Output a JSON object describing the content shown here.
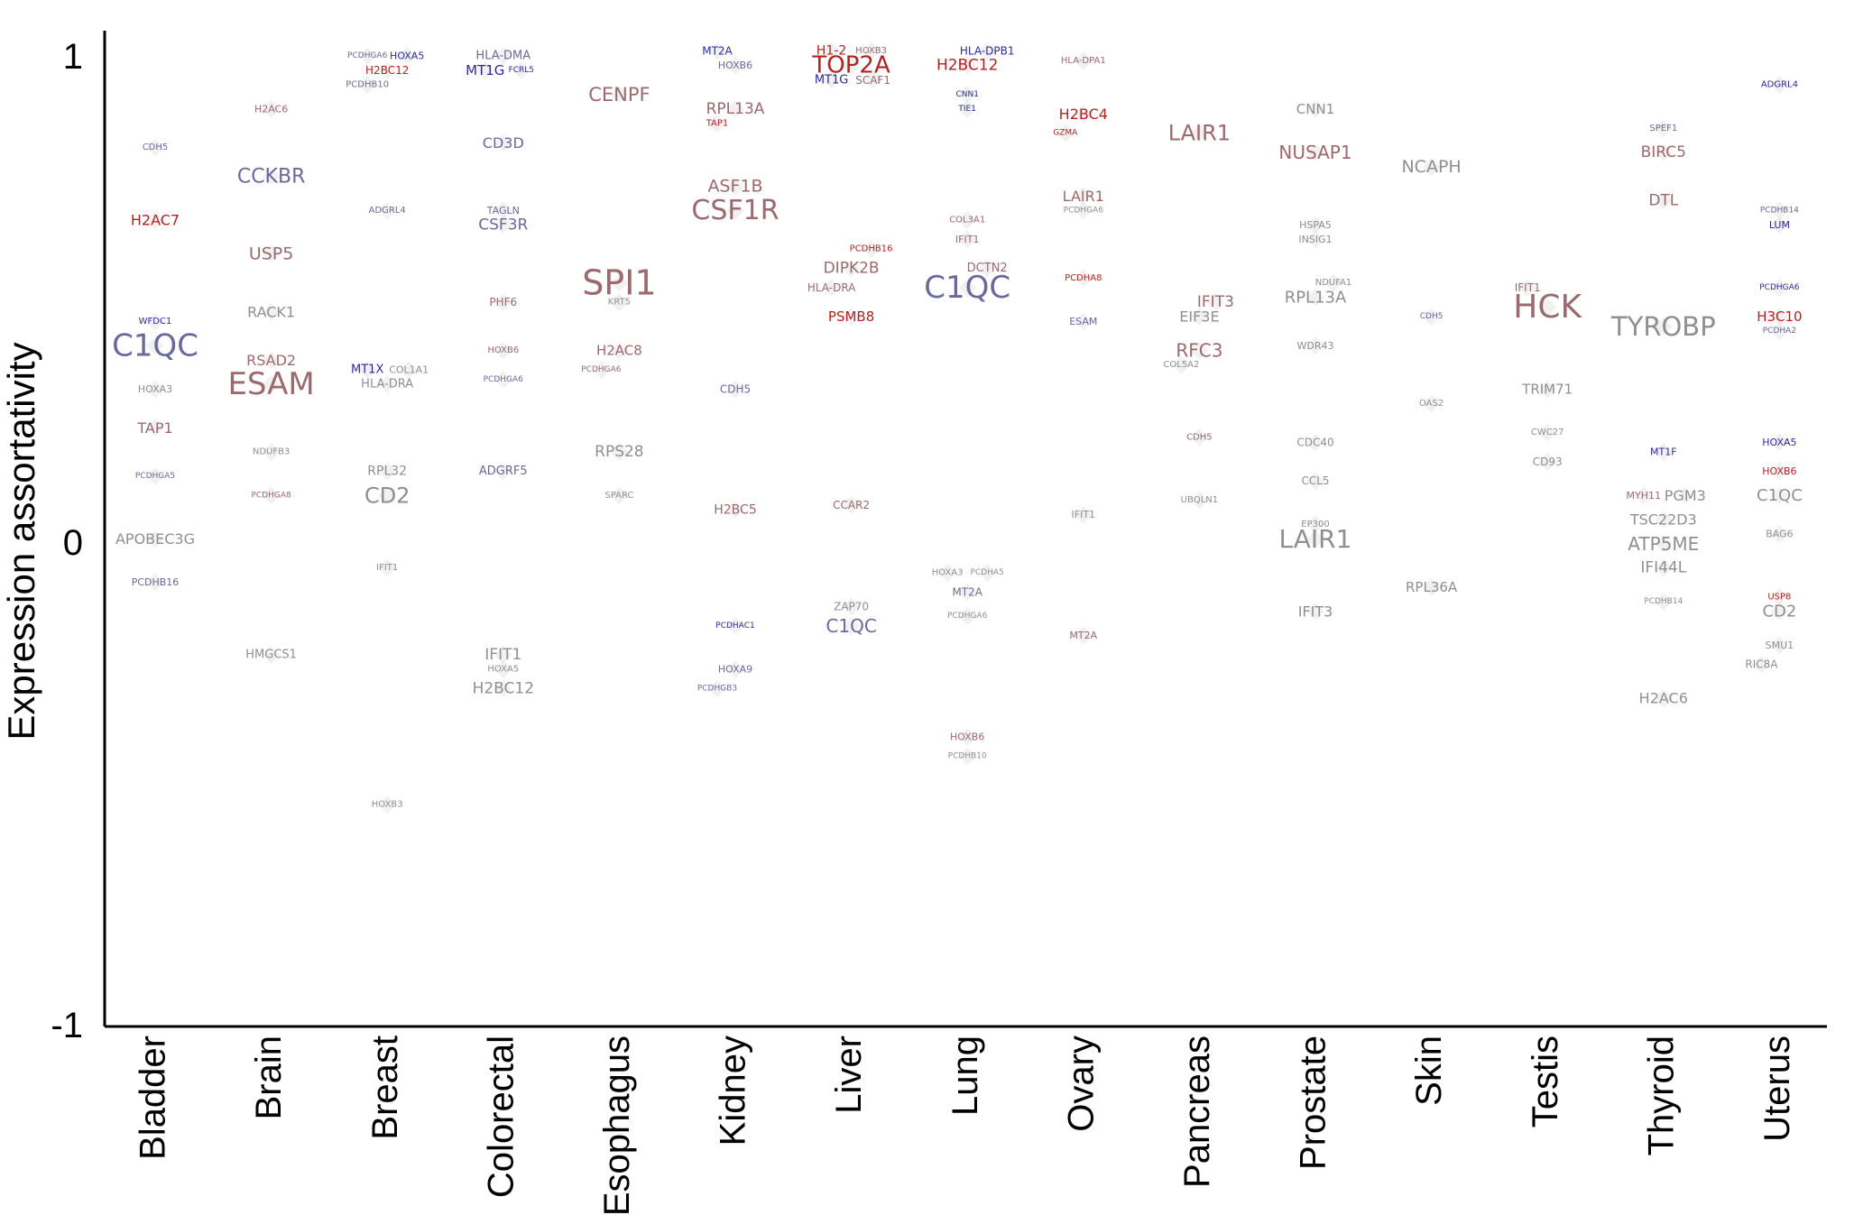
{
  "chart_data": {
    "type": "scatter",
    "ylabel": "Expression assortativity",
    "ylim": [
      -1,
      1
    ],
    "yticks": [
      "1",
      "0",
      "-1"
    ],
    "categories": [
      "Bladder",
      "Brain",
      "Breast",
      "Colorectal",
      "Esophagus",
      "Kidney",
      "Liver",
      "Lung",
      "Ovary",
      "Pancreas",
      "Prostate",
      "Skin",
      "Testis",
      "Thyroid",
      "Uterus"
    ],
    "colors": {
      "red": "#b22222",
      "blue": "#2b2b9a",
      "mauve": "#9a6a6e",
      "slate": "#6a6a9a",
      "gray": "#8f8f8f"
    },
    "labels": [
      {
        "t": "CDH5",
        "c": 0,
        "y": 0.81,
        "s": 10,
        "k": "slate"
      },
      {
        "t": "H2AC7",
        "c": 0,
        "y": 0.66,
        "s": 16,
        "k": "red"
      },
      {
        "t": "WFDC1",
        "c": 0,
        "y": 0.45,
        "s": 10,
        "k": "blue"
      },
      {
        "t": "C1QC",
        "c": 0,
        "y": 0.4,
        "s": 34,
        "k": "slate"
      },
      {
        "t": "HOXA3",
        "c": 0,
        "y": 0.31,
        "s": 11,
        "k": "gray"
      },
      {
        "t": "TAP1",
        "c": 0,
        "y": 0.23,
        "s": 16,
        "k": "mauve"
      },
      {
        "t": "PCDHGA5",
        "c": 0,
        "y": 0.13,
        "s": 9,
        "k": "slate"
      },
      {
        "t": "APOBEC3G",
        "c": 0,
        "y": 0.0,
        "s": 16,
        "k": "gray"
      },
      {
        "t": "PCDHB16",
        "c": 0,
        "y": -0.09,
        "s": 11,
        "k": "slate"
      },
      {
        "t": "H2AC6",
        "c": 1,
        "y": 0.89,
        "s": 11,
        "k": "mauve"
      },
      {
        "t": "CCKBR",
        "c": 1,
        "y": 0.75,
        "s": 22,
        "k": "slate"
      },
      {
        "t": "USP5",
        "c": 1,
        "y": 0.59,
        "s": 19,
        "k": "mauve"
      },
      {
        "t": "RACK1",
        "c": 1,
        "y": 0.47,
        "s": 16,
        "k": "gray"
      },
      {
        "t": "RSAD2",
        "c": 1,
        "y": 0.37,
        "s": 16,
        "k": "mauve"
      },
      {
        "t": "ESAM",
        "c": 1,
        "y": 0.32,
        "s": 34,
        "k": "mauve"
      },
      {
        "t": "NDUFB3",
        "c": 1,
        "y": 0.18,
        "s": 10,
        "k": "gray"
      },
      {
        "t": "PCDHGA8",
        "c": 1,
        "y": 0.09,
        "s": 9,
        "k": "mauve"
      },
      {
        "t": "HMGCS1",
        "c": 1,
        "y": -0.24,
        "s": 13,
        "k": "gray"
      },
      {
        "t": "PCDHGA6",
        "c": 2,
        "y": 1.0,
        "s": 9,
        "k": "slate",
        "dx": -22
      },
      {
        "t": "HOXA5",
        "c": 2,
        "y": 1.0,
        "s": 11,
        "k": "blue",
        "dx": 22
      },
      {
        "t": "H2BC12",
        "c": 2,
        "y": 0.97,
        "s": 12,
        "k": "red"
      },
      {
        "t": "PCDHB10",
        "c": 2,
        "y": 0.94,
        "s": 10,
        "k": "slate",
        "dx": -22
      },
      {
        "t": "ADGRL4",
        "c": 2,
        "y": 0.68,
        "s": 10,
        "k": "slate"
      },
      {
        "t": "MT1X",
        "c": 2,
        "y": 0.35,
        "s": 13,
        "k": "blue",
        "dx": -22
      },
      {
        "t": "COL1A1",
        "c": 2,
        "y": 0.35,
        "s": 11,
        "k": "gray",
        "dx": 24
      },
      {
        "t": "HLA-DRA",
        "c": 2,
        "y": 0.32,
        "s": 13,
        "k": "gray"
      },
      {
        "t": "RPL32",
        "c": 2,
        "y": 0.14,
        "s": 14,
        "k": "gray"
      },
      {
        "t": "CD2",
        "c": 2,
        "y": 0.09,
        "s": 24,
        "k": "gray"
      },
      {
        "t": "IFIT1",
        "c": 2,
        "y": -0.06,
        "s": 10,
        "k": "gray"
      },
      {
        "t": "HOXB3",
        "c": 2,
        "y": -0.55,
        "s": 10,
        "k": "gray"
      },
      {
        "t": "HLA-DMA",
        "c": 3,
        "y": 1.0,
        "s": 13,
        "k": "slate"
      },
      {
        "t": "MT1G",
        "c": 3,
        "y": 0.97,
        "s": 15,
        "k": "blue",
        "dx": -20
      },
      {
        "t": "FCRL5",
        "c": 3,
        "y": 0.97,
        "s": 9,
        "k": "blue",
        "dx": 20
      },
      {
        "t": "CD3D",
        "c": 3,
        "y": 0.82,
        "s": 16,
        "k": "slate"
      },
      {
        "t": "TAGLN",
        "c": 3,
        "y": 0.68,
        "s": 11,
        "k": "slate"
      },
      {
        "t": "CSF3R",
        "c": 3,
        "y": 0.65,
        "s": 17,
        "k": "slate"
      },
      {
        "t": "PHF6",
        "c": 3,
        "y": 0.49,
        "s": 12,
        "k": "mauve"
      },
      {
        "t": "HOXB6",
        "c": 3,
        "y": 0.39,
        "s": 10,
        "k": "mauve"
      },
      {
        "t": "PCDHGA6",
        "c": 3,
        "y": 0.33,
        "s": 9,
        "k": "slate"
      },
      {
        "t": "ADGRF5",
        "c": 3,
        "y": 0.14,
        "s": 13,
        "k": "slate"
      },
      {
        "t": "IFIT1",
        "c": 3,
        "y": -0.24,
        "s": 17,
        "k": "gray"
      },
      {
        "t": "HOXA5",
        "c": 3,
        "y": -0.27,
        "s": 10,
        "k": "gray"
      },
      {
        "t": "H2BC12",
        "c": 3,
        "y": -0.31,
        "s": 17,
        "k": "gray"
      },
      {
        "t": "CENPF",
        "c": 4,
        "y": 0.92,
        "s": 21,
        "k": "mauve"
      },
      {
        "t": "SPI1",
        "c": 4,
        "y": 0.53,
        "s": 38,
        "k": "mauve"
      },
      {
        "t": "KRT5",
        "c": 4,
        "y": 0.49,
        "s": 10,
        "k": "gray"
      },
      {
        "t": "H2AC8",
        "c": 4,
        "y": 0.39,
        "s": 15,
        "k": "mauve"
      },
      {
        "t": "PCDHGA6",
        "c": 4,
        "y": 0.35,
        "s": 9,
        "k": "mauve",
        "dx": -20
      },
      {
        "t": "RPS28",
        "c": 4,
        "y": 0.18,
        "s": 17,
        "k": "gray"
      },
      {
        "t": "SPARC",
        "c": 4,
        "y": 0.09,
        "s": 10,
        "k": "gray"
      },
      {
        "t": "MT2A",
        "c": 5,
        "y": 1.01,
        "s": 12,
        "k": "blue",
        "dx": -20
      },
      {
        "t": "HOXB6",
        "c": 5,
        "y": 0.98,
        "s": 11,
        "k": "slate"
      },
      {
        "t": "RPL13A",
        "c": 5,
        "y": 0.89,
        "s": 17,
        "k": "mauve"
      },
      {
        "t": "TAP1",
        "c": 5,
        "y": 0.86,
        "s": 10,
        "k": "red",
        "dx": -20
      },
      {
        "t": "ASF1B",
        "c": 5,
        "y": 0.73,
        "s": 19,
        "k": "mauve"
      },
      {
        "t": "CSF1R",
        "c": 5,
        "y": 0.68,
        "s": 30,
        "k": "mauve"
      },
      {
        "t": "CDH5",
        "c": 5,
        "y": 0.31,
        "s": 12,
        "k": "slate"
      },
      {
        "t": "H2BC5",
        "c": 5,
        "y": 0.06,
        "s": 14,
        "k": "mauve"
      },
      {
        "t": "PCDHAC1",
        "c": 5,
        "y": -0.18,
        "s": 9,
        "k": "blue"
      },
      {
        "t": "HOXA9",
        "c": 5,
        "y": -0.27,
        "s": 11,
        "k": "slate"
      },
      {
        "t": "PCDHGB3",
        "c": 5,
        "y": -0.31,
        "s": 9,
        "k": "slate",
        "dx": -20
      },
      {
        "t": "H1-2",
        "c": 6,
        "y": 1.01,
        "s": 14,
        "k": "red",
        "dx": -22
      },
      {
        "t": "HOXB3",
        "c": 6,
        "y": 1.01,
        "s": 10,
        "k": "mauve",
        "dx": 22
      },
      {
        "t": "TOP2A",
        "c": 6,
        "y": 0.98,
        "s": 26,
        "k": "red"
      },
      {
        "t": "MT1G",
        "c": 6,
        "y": 0.95,
        "s": 13,
        "k": "blue",
        "dx": -22
      },
      {
        "t": "SCAF1",
        "c": 6,
        "y": 0.95,
        "s": 12,
        "k": "mauve",
        "dx": 24
      },
      {
        "t": "PCDHB16",
        "c": 6,
        "y": 0.6,
        "s": 10,
        "k": "red",
        "dx": 22
      },
      {
        "t": "DIPK2B",
        "c": 6,
        "y": 0.56,
        "s": 17,
        "k": "mauve"
      },
      {
        "t": "HLA-DRA",
        "c": 6,
        "y": 0.52,
        "s": 12,
        "k": "mauve",
        "dx": -22
      },
      {
        "t": "PSMB8",
        "c": 6,
        "y": 0.46,
        "s": 15,
        "k": "red"
      },
      {
        "t": "CCAR2",
        "c": 6,
        "y": 0.07,
        "s": 12,
        "k": "mauve"
      },
      {
        "t": "ZAP70",
        "c": 6,
        "y": -0.14,
        "s": 12,
        "k": "gray"
      },
      {
        "t": "C1QC",
        "c": 6,
        "y": -0.18,
        "s": 20,
        "k": "slate"
      },
      {
        "t": "HLA-DPB1",
        "c": 7,
        "y": 1.01,
        "s": 12,
        "k": "blue",
        "dx": 22
      },
      {
        "t": "H2BC12",
        "c": 7,
        "y": 0.98,
        "s": 17,
        "k": "red"
      },
      {
        "t": "CNN1",
        "c": 7,
        "y": 0.92,
        "s": 9,
        "k": "blue"
      },
      {
        "t": "TIE1",
        "c": 7,
        "y": 0.89,
        "s": 9,
        "k": "blue"
      },
      {
        "t": "COL3A1",
        "c": 7,
        "y": 0.66,
        "s": 10,
        "k": "mauve"
      },
      {
        "t": "IFIT1",
        "c": 7,
        "y": 0.62,
        "s": 11,
        "k": "mauve"
      },
      {
        "t": "DCTN2",
        "c": 7,
        "y": 0.56,
        "s": 13,
        "k": "mauve",
        "dx": 22
      },
      {
        "t": "C1QC",
        "c": 7,
        "y": 0.52,
        "s": 34,
        "k": "slate"
      },
      {
        "t": "HOXA3",
        "c": 7,
        "y": -0.07,
        "s": 10,
        "k": "gray",
        "dx": -22
      },
      {
        "t": "PCDHA5",
        "c": 7,
        "y": -0.07,
        "s": 9,
        "k": "gray",
        "dx": 22
      },
      {
        "t": "MT2A",
        "c": 7,
        "y": -0.11,
        "s": 12,
        "k": "slate"
      },
      {
        "t": "PCDHGA6",
        "c": 7,
        "y": -0.16,
        "s": 9,
        "k": "gray"
      },
      {
        "t": "HOXB6",
        "c": 7,
        "y": -0.41,
        "s": 11,
        "k": "mauve"
      },
      {
        "t": "PCDHB10",
        "c": 7,
        "y": -0.45,
        "s": 9,
        "k": "gray"
      },
      {
        "t": "HLA-DPA1",
        "c": 8,
        "y": 0.99,
        "s": 10,
        "k": "mauve"
      },
      {
        "t": "H2BC4",
        "c": 8,
        "y": 0.88,
        "s": 16,
        "k": "red"
      },
      {
        "t": "GZMA",
        "c": 8,
        "y": 0.84,
        "s": 9,
        "k": "red",
        "dx": -20
      },
      {
        "t": "LAIR1",
        "c": 8,
        "y": 0.71,
        "s": 16,
        "k": "mauve"
      },
      {
        "t": "PCDHGA6",
        "c": 8,
        "y": 0.68,
        "s": 9,
        "k": "gray"
      },
      {
        "t": "PCDHA8",
        "c": 8,
        "y": 0.54,
        "s": 10,
        "k": "red"
      },
      {
        "t": "ESAM",
        "c": 8,
        "y": 0.45,
        "s": 11,
        "k": "slate"
      },
      {
        "t": "IFIT1",
        "c": 8,
        "y": 0.05,
        "s": 11,
        "k": "gray"
      },
      {
        "t": "MT2A",
        "c": 8,
        "y": -0.2,
        "s": 11,
        "k": "mauve"
      },
      {
        "t": "LAIR1",
        "c": 9,
        "y": 0.84,
        "s": 24,
        "k": "mauve"
      },
      {
        "t": "IFIT3",
        "c": 9,
        "y": 0.49,
        "s": 17,
        "k": "mauve",
        "dx": 18
      },
      {
        "t": "EIF3E",
        "c": 9,
        "y": 0.46,
        "s": 16,
        "k": "gray"
      },
      {
        "t": "RFC3",
        "c": 9,
        "y": 0.39,
        "s": 20,
        "k": "mauve"
      },
      {
        "t": "COL5A2",
        "c": 9,
        "y": 0.36,
        "s": 10,
        "k": "gray",
        "dx": -20
      },
      {
        "t": "CDH5",
        "c": 9,
        "y": 0.21,
        "s": 10,
        "k": "mauve"
      },
      {
        "t": "UBQLN1",
        "c": 9,
        "y": 0.08,
        "s": 10,
        "k": "gray"
      },
      {
        "t": "CNN1",
        "c": 10,
        "y": 0.89,
        "s": 15,
        "k": "gray"
      },
      {
        "t": "NUSAP1",
        "c": 10,
        "y": 0.8,
        "s": 20,
        "k": "mauve"
      },
      {
        "t": "HSPA5",
        "c": 10,
        "y": 0.65,
        "s": 11,
        "k": "gray"
      },
      {
        "t": "INSIG1",
        "c": 10,
        "y": 0.62,
        "s": 11,
        "k": "gray"
      },
      {
        "t": "NDUFA1",
        "c": 10,
        "y": 0.53,
        "s": 10,
        "k": "gray",
        "dx": 20
      },
      {
        "t": "RPL13A",
        "c": 10,
        "y": 0.5,
        "s": 18,
        "k": "gray"
      },
      {
        "t": "WDR43",
        "c": 10,
        "y": 0.4,
        "s": 11,
        "k": "gray"
      },
      {
        "t": "CDC40",
        "c": 10,
        "y": 0.2,
        "s": 12,
        "k": "gray"
      },
      {
        "t": "CCL5",
        "c": 10,
        "y": 0.12,
        "s": 12,
        "k": "gray"
      },
      {
        "t": "EP300",
        "c": 10,
        "y": 0.03,
        "s": 10,
        "k": "gray"
      },
      {
        "t": "LAIR1",
        "c": 10,
        "y": 0.0,
        "s": 28,
        "k": "gray"
      },
      {
        "t": "IFIT3",
        "c": 10,
        "y": -0.15,
        "s": 16,
        "k": "gray"
      },
      {
        "t": "NCAPH",
        "c": 11,
        "y": 0.77,
        "s": 19,
        "k": "gray"
      },
      {
        "t": "CDH5",
        "c": 11,
        "y": 0.46,
        "s": 9,
        "k": "slate"
      },
      {
        "t": "OAS2",
        "c": 11,
        "y": 0.28,
        "s": 10,
        "k": "gray"
      },
      {
        "t": "RPL36A",
        "c": 11,
        "y": -0.1,
        "s": 15,
        "k": "gray"
      },
      {
        "t": "IFIT1",
        "c": 12,
        "y": 0.52,
        "s": 12,
        "k": "mauve",
        "dx": -22
      },
      {
        "t": "HCK",
        "c": 12,
        "y": 0.48,
        "s": 36,
        "k": "mauve"
      },
      {
        "t": "TRIM71",
        "c": 12,
        "y": 0.31,
        "s": 15,
        "k": "gray"
      },
      {
        "t": "CWC27",
        "c": 12,
        "y": 0.22,
        "s": 10,
        "k": "gray"
      },
      {
        "t": "CD93",
        "c": 12,
        "y": 0.16,
        "s": 12,
        "k": "gray"
      },
      {
        "t": "SPEF1",
        "c": 13,
        "y": 0.85,
        "s": 10,
        "k": "slate"
      },
      {
        "t": "BIRC5",
        "c": 13,
        "y": 0.8,
        "s": 17,
        "k": "mauve"
      },
      {
        "t": "DTL",
        "c": 13,
        "y": 0.7,
        "s": 17,
        "k": "mauve"
      },
      {
        "t": "TYROBP",
        "c": 13,
        "y": 0.44,
        "s": 29,
        "k": "gray"
      },
      {
        "t": "MT1F",
        "c": 13,
        "y": 0.18,
        "s": 11,
        "k": "blue"
      },
      {
        "t": "MYH11",
        "c": 13,
        "y": 0.09,
        "s": 11,
        "k": "mauve",
        "dx": -22
      },
      {
        "t": "PGM3",
        "c": 13,
        "y": 0.09,
        "s": 16,
        "k": "gray",
        "dx": 24
      },
      {
        "t": "TSC22D3",
        "c": 13,
        "y": 0.04,
        "s": 16,
        "k": "gray"
      },
      {
        "t": "ATP5ME",
        "c": 13,
        "y": -0.01,
        "s": 20,
        "k": "gray"
      },
      {
        "t": "IFI44L",
        "c": 13,
        "y": -0.06,
        "s": 17,
        "k": "gray"
      },
      {
        "t": "PCDHB14",
        "c": 13,
        "y": -0.13,
        "s": 9,
        "k": "gray"
      },
      {
        "t": "H2AC6",
        "c": 13,
        "y": -0.33,
        "s": 16,
        "k": "gray"
      },
      {
        "t": "ADGRL4",
        "c": 14,
        "y": 0.94,
        "s": 10,
        "k": "blue"
      },
      {
        "t": "PCDHB14",
        "c": 14,
        "y": 0.68,
        "s": 9,
        "k": "slate"
      },
      {
        "t": "LUM",
        "c": 14,
        "y": 0.65,
        "s": 11,
        "k": "blue"
      },
      {
        "t": "PCDHGA6",
        "c": 14,
        "y": 0.52,
        "s": 9,
        "k": "blue"
      },
      {
        "t": "H3C10",
        "c": 14,
        "y": 0.46,
        "s": 15,
        "k": "red"
      },
      {
        "t": "PCDHA2",
        "c": 14,
        "y": 0.43,
        "s": 9,
        "k": "slate"
      },
      {
        "t": "HOXA5",
        "c": 14,
        "y": 0.2,
        "s": 11,
        "k": "blue"
      },
      {
        "t": "HOXB6",
        "c": 14,
        "y": 0.14,
        "s": 11,
        "k": "red"
      },
      {
        "t": "C1QC",
        "c": 14,
        "y": 0.09,
        "s": 18,
        "k": "gray"
      },
      {
        "t": "BAG6",
        "c": 14,
        "y": 0.01,
        "s": 11,
        "k": "gray"
      },
      {
        "t": "USP8",
        "c": 14,
        "y": -0.12,
        "s": 10,
        "k": "red"
      },
      {
        "t": "CD2",
        "c": 14,
        "y": -0.15,
        "s": 18,
        "k": "gray"
      },
      {
        "t": "SMU1",
        "c": 14,
        "y": -0.22,
        "s": 11,
        "k": "gray"
      },
      {
        "t": "RIC8A",
        "c": 14,
        "y": -0.26,
        "s": 12,
        "k": "gray",
        "dx": -20
      }
    ]
  }
}
